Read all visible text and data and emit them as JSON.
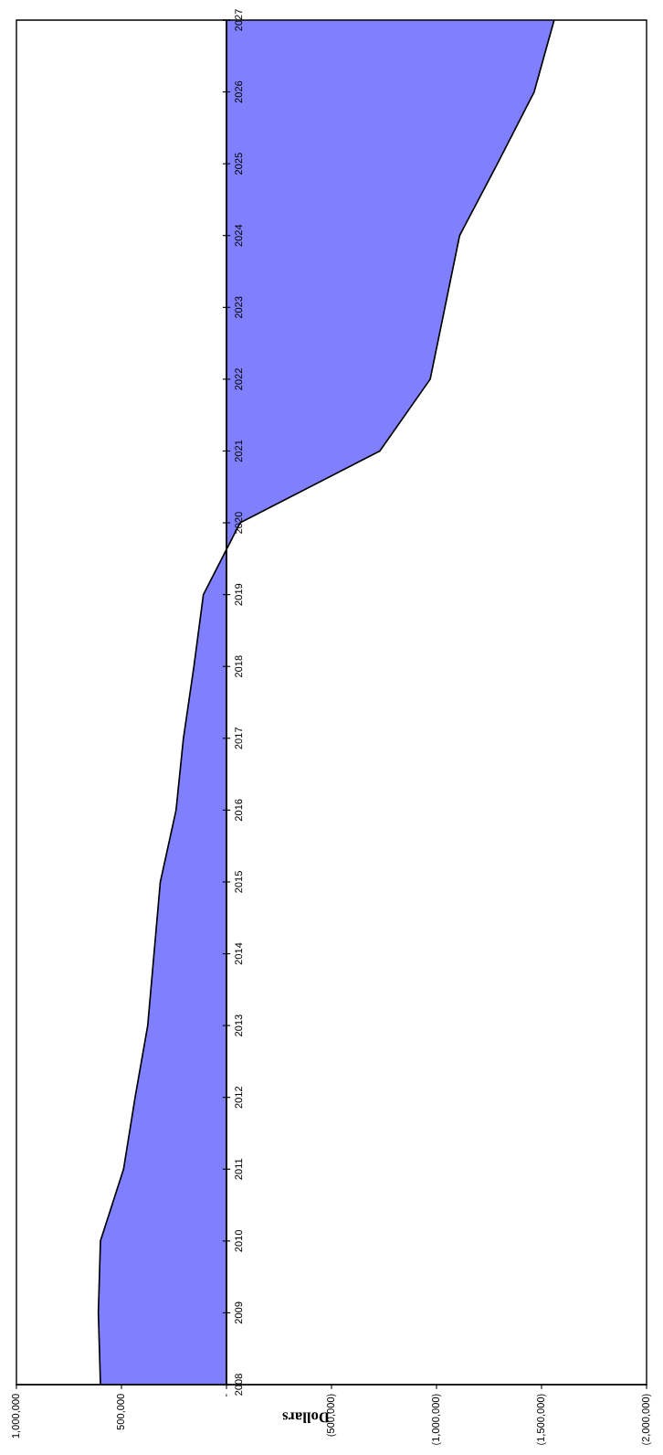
{
  "chart_data": {
    "type": "area",
    "orientation": "horizontal",
    "xlabel": "Dollars",
    "color": "#8080ff",
    "categories": [
      "2027",
      "2026",
      "2025",
      "2024",
      "2023",
      "2022",
      "2021",
      "2020",
      "2019",
      "2018",
      "2017",
      "2016",
      "2015",
      "2014",
      "2013",
      "2012",
      "2011",
      "2010",
      "2009",
      "2008"
    ],
    "values": [
      -1560000,
      -1465000,
      -1290000,
      -1110000,
      -1040000,
      -970000,
      -730000,
      -65000,
      110000,
      155000,
      205000,
      240000,
      315000,
      345000,
      375000,
      435000,
      490000,
      600000,
      610000,
      600000
    ],
    "xlim": [
      1000000,
      -2000000
    ],
    "xticks": [
      {
        "value": 1000000,
        "label": "1,000,000"
      },
      {
        "value": 500000,
        "label": "500,000"
      },
      {
        "value": 0,
        "label": "-"
      },
      {
        "value": -500000,
        "label": "(500,000)"
      },
      {
        "value": -1000000,
        "label": "(1,000,000)"
      },
      {
        "value": -1500000,
        "label": "(1,500,000)"
      },
      {
        "value": -2000000,
        "label": "(2,000,000)"
      }
    ],
    "grid": false
  }
}
